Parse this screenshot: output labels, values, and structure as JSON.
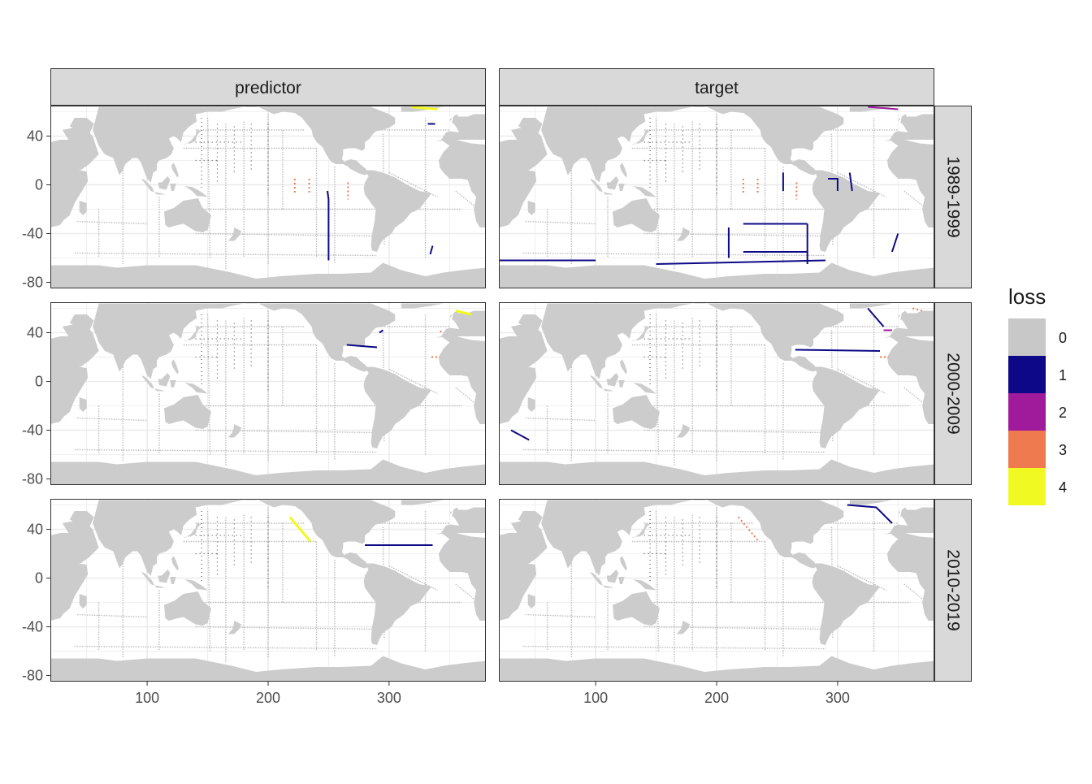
{
  "chart_data": {
    "type": "heatmap",
    "title": "",
    "xlabel": "",
    "ylabel": "",
    "facet_cols": [
      "predictor",
      "target"
    ],
    "facet_rows": [
      "1989-1999",
      "2000-2009",
      "2010-2019"
    ],
    "xlim": [
      20,
      380
    ],
    "ylim": [
      -85,
      65
    ],
    "x_ticks": [
      100,
      200,
      300
    ],
    "x_tick_labels": [
      "100",
      "200",
      "300"
    ],
    "y_ticks": [
      40,
      0,
      -40,
      -80
    ],
    "y_tick_labels": [
      "40",
      "0",
      "-40",
      "-80"
    ],
    "grid": true,
    "legend": {
      "title": "loss",
      "position": "right",
      "levels": [
        "0",
        "1",
        "2",
        "3",
        "4"
      ],
      "colors": [
        "#c8c8c8",
        "#0d0887",
        "#a01a9c",
        "#ef7a4f",
        "#f0f921"
      ]
    },
    "colors": {
      "land": "#cccccc",
      "ocean": "#ffffff",
      "panel_border": "#333333",
      "strip_fill": "#d9d9d9",
      "grid": "#ebebeb"
    },
    "panels": [
      {
        "row": 0,
        "col": 0,
        "segments": [
          {
            "loss": 1,
            "pts": [
              [
                249,
                -5
              ],
              [
                250,
                -12
              ],
              [
                250,
                -62
              ]
            ]
          },
          {
            "loss": 1,
            "pts": [
              [
                332,
                50
              ],
              [
                338,
                50
              ]
            ]
          },
          {
            "loss": 1,
            "pts": [
              [
                336,
                -50
              ],
              [
                334,
                -57
              ]
            ]
          },
          {
            "loss": 4,
            "pts": [
              [
                318,
                64
              ],
              [
                340,
                62
              ]
            ]
          },
          {
            "loss": 3,
            "pts": [
              [
                222,
                5
              ],
              [
                222,
                -8
              ]
            ]
          },
          {
            "loss": 3,
            "pts": [
              [
                234,
                5
              ],
              [
                234,
                -8
              ]
            ]
          },
          {
            "loss": 3,
            "pts": [
              [
                266,
                2
              ],
              [
                266,
                -12
              ]
            ]
          }
        ]
      },
      {
        "row": 0,
        "col": 1,
        "segments": [
          {
            "loss": 1,
            "pts": [
              [
                222,
                -32
              ],
              [
                275,
                -32
              ]
            ]
          },
          {
            "loss": 1,
            "pts": [
              [
                275,
                -32
              ],
              [
                275,
                -65
              ]
            ]
          },
          {
            "loss": 1,
            "pts": [
              [
                210,
                -35
              ],
              [
                210,
                -60
              ]
            ]
          },
          {
            "loss": 1,
            "pts": [
              [
                222,
                -55
              ],
              [
                275,
                -55
              ]
            ]
          },
          {
            "loss": 1,
            "pts": [
              [
                20,
                -62
              ],
              [
                100,
                -62
              ]
            ]
          },
          {
            "loss": 1,
            "pts": [
              [
                150,
                -65
              ],
              [
                290,
                -62
              ]
            ]
          },
          {
            "loss": 1,
            "pts": [
              [
                255,
                10
              ],
              [
                255,
                -5
              ]
            ]
          },
          {
            "loss": 1,
            "pts": [
              [
                292,
                5
              ],
              [
                300,
                5
              ],
              [
                300,
                -5
              ]
            ]
          },
          {
            "loss": 1,
            "pts": [
              [
                310,
                10
              ],
              [
                312,
                -5
              ]
            ]
          },
          {
            "loss": 1,
            "pts": [
              [
                350,
                -40
              ],
              [
                345,
                -55
              ]
            ]
          },
          {
            "loss": 2,
            "pts": [
              [
                325,
                64
              ],
              [
                350,
                62
              ]
            ]
          },
          {
            "loss": 3,
            "pts": [
              [
                222,
                5
              ],
              [
                222,
                -8
              ]
            ]
          },
          {
            "loss": 3,
            "pts": [
              [
                234,
                5
              ],
              [
                234,
                -8
              ]
            ]
          },
          {
            "loss": 3,
            "pts": [
              [
                266,
                2
              ],
              [
                266,
                -12
              ]
            ]
          }
        ]
      },
      {
        "row": 1,
        "col": 0,
        "segments": [
          {
            "loss": 1,
            "pts": [
              [
                265,
                30
              ],
              [
                290,
                28
              ]
            ]
          },
          {
            "loss": 1,
            "pts": [
              [
                292,
                40
              ],
              [
                295,
                42
              ]
            ]
          },
          {
            "loss": 3,
            "pts": [
              [
                342,
                41
              ],
              [
                344,
                41
              ]
            ]
          },
          {
            "loss": 3,
            "pts": [
              [
                335,
                20
              ],
              [
                342,
                20
              ]
            ]
          },
          {
            "loss": 4,
            "pts": [
              [
                355,
                58
              ],
              [
                368,
                55
              ]
            ]
          }
        ]
      },
      {
        "row": 1,
        "col": 1,
        "segments": [
          {
            "loss": 1,
            "pts": [
              [
                265,
                26
              ],
              [
                335,
                25
              ]
            ]
          },
          {
            "loss": 1,
            "pts": [
              [
                325,
                60
              ],
              [
                338,
                45
              ]
            ]
          },
          {
            "loss": 1,
            "pts": [
              [
                30,
                -40
              ],
              [
                45,
                -48
              ]
            ]
          },
          {
            "loss": 2,
            "pts": [
              [
                338,
                42
              ],
              [
                345,
                42
              ]
            ]
          },
          {
            "loss": 3,
            "pts": [
              [
                362,
                60
              ],
              [
                370,
                58
              ]
            ]
          },
          {
            "loss": 3,
            "pts": [
              [
                335,
                20
              ],
              [
                342,
                20
              ]
            ]
          }
        ]
      },
      {
        "row": 2,
        "col": 0,
        "segments": [
          {
            "loss": 1,
            "pts": [
              [
                280,
                27
              ],
              [
                336,
                27
              ]
            ]
          },
          {
            "loss": 4,
            "pts": [
              [
                218,
                50
              ],
              [
                235,
                30
              ]
            ]
          }
        ]
      },
      {
        "row": 2,
        "col": 1,
        "segments": [
          {
            "loss": 1,
            "pts": [
              [
                308,
                60
              ],
              [
                332,
                58
              ],
              [
                345,
                45
              ]
            ]
          },
          {
            "loss": 3,
            "pts": [
              [
                218,
                50
              ],
              [
                235,
                30
              ]
            ]
          }
        ]
      }
    ]
  }
}
